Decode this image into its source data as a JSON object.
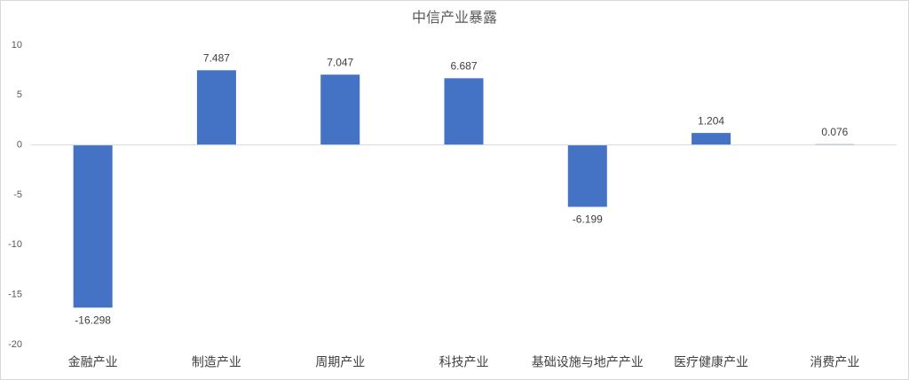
{
  "chart_data": {
    "type": "bar",
    "title": "中信产业暴露",
    "categories": [
      "金融产业",
      "制造产业",
      "周期产业",
      "科技产业",
      "基础设施与地产产业",
      "医疗健康产业",
      "消费产业"
    ],
    "values": [
      -16.298,
      7.487,
      7.047,
      6.687,
      -6.199,
      1.204,
      0.076
    ],
    "color": "#4472c4",
    "ylim": [
      -20,
      10
    ],
    "yticks": [
      -20,
      -15,
      -10,
      -5,
      0,
      5,
      10
    ],
    "grid": false
  }
}
